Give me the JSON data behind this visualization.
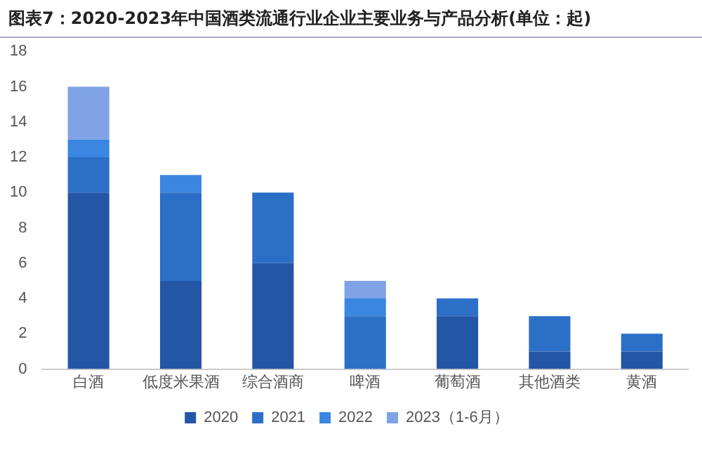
{
  "chart_data": {
    "type": "bar",
    "title": "图表7：2020-2023年中国酒类流通行业企业主要业务与产品分析(单位：起)",
    "categories": [
      "白酒",
      "低度米果酒",
      "综合酒商",
      "啤酒",
      "葡萄酒",
      "其他酒类",
      "黄酒"
    ],
    "stacked": true,
    "series": [
      {
        "name": "2020",
        "color": "#2456a6",
        "values": [
          10,
          5,
          6,
          0,
          3,
          1,
          1
        ]
      },
      {
        "name": "2021",
        "color": "#2c6fc7",
        "values": [
          2,
          5,
          4,
          3,
          1,
          2,
          1
        ]
      },
      {
        "name": "2022",
        "color": "#3b86e0",
        "values": [
          1,
          1,
          0,
          1,
          0,
          0,
          0
        ]
      },
      {
        "name": "2023（1-6月）",
        "color": "#7fa3e6",
        "values": [
          3,
          0,
          0,
          1,
          0,
          0,
          0
        ]
      }
    ],
    "ylim": [
      0,
      18
    ],
    "yticks": [
      0,
      2,
      4,
      6,
      8,
      10,
      12,
      14,
      16,
      18
    ],
    "grid": false,
    "legend": "bottom"
  }
}
